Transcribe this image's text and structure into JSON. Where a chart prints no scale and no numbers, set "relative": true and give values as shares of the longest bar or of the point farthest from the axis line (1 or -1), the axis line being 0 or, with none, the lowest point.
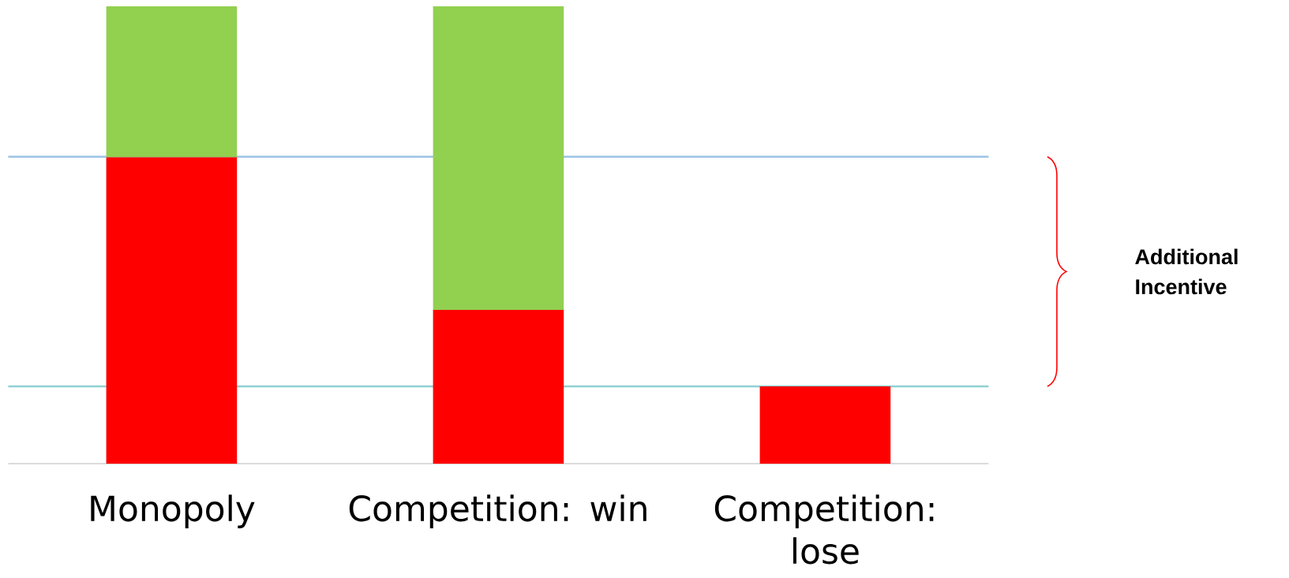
{
  "chart_data": {
    "type": "bar",
    "stacked": true,
    "relative": true,
    "categories": [
      "Monopoly",
      "Competition: win",
      "Competition: lose"
    ],
    "series": [
      {
        "color": "#ff0000",
        "values": [
          0.67,
          0.336,
          0.169
        ]
      },
      {
        "color": "#92d050",
        "values": [
          0.33,
          0.664,
          null
        ]
      }
    ],
    "ref_lines": [
      {
        "axis": "y",
        "value": 0.671,
        "color": "#9dc3e6"
      },
      {
        "axis": "y",
        "value": 0.169,
        "color": "#8fd0d3"
      }
    ],
    "annotations": [
      "Additional Incentive"
    ]
  }
}
